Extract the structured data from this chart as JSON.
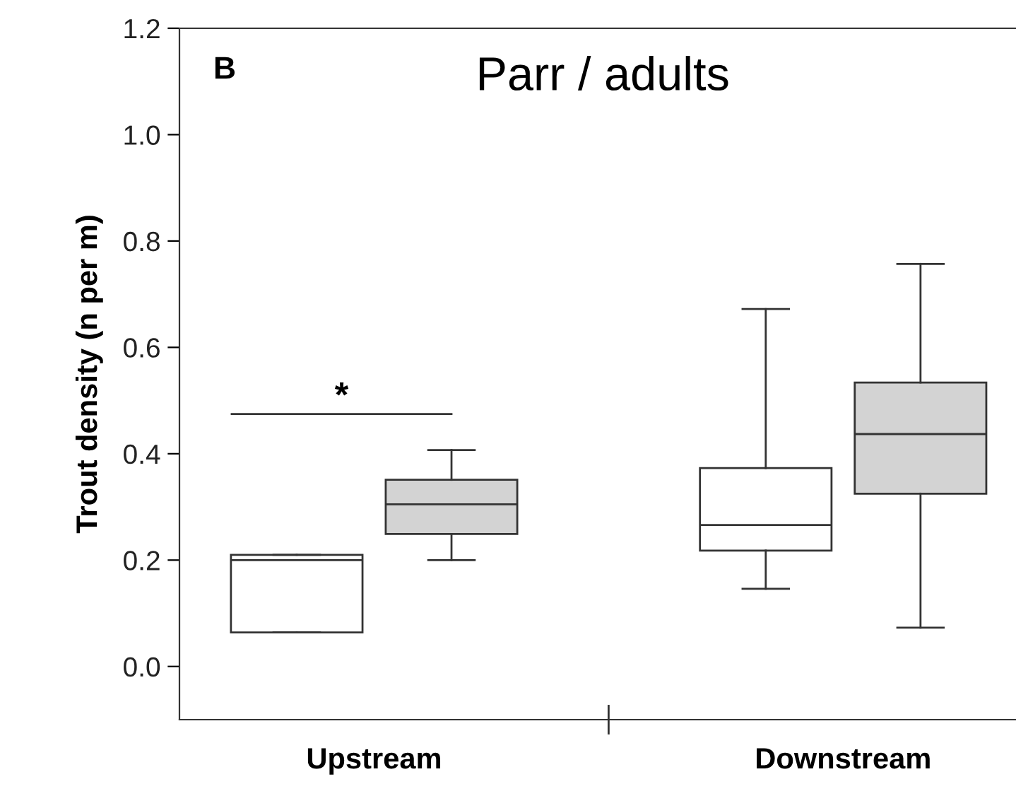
{
  "chart_data": {
    "type": "box",
    "title": "Parr / adults",
    "ylabel": "Trout density (n per m)",
    "categories": [
      "Upstream",
      "Downstream"
    ],
    "series": [
      {
        "color": "#ffffff",
        "boxes": [
          {
            "low": 0.064,
            "q1": 0.064,
            "median": 0.2,
            "q3": 0.21,
            "high": 0.21
          },
          {
            "low": 0.146,
            "q1": 0.218,
            "median": 0.266,
            "q3": 0.373,
            "high": 0.672
          }
        ]
      },
      {
        "color": "#d3d3d3",
        "boxes": [
          {
            "low": 0.2,
            "q1": 0.249,
            "median": 0.305,
            "q3": 0.351,
            "high": 0.407
          },
          {
            "low": 0.073,
            "q1": 0.325,
            "median": 0.437,
            "q3": 0.534,
            "high": 0.757
          }
        ]
      }
    ],
    "ylim": [
      -0.1,
      1.2
    ],
    "yticks": [
      {
        "value": 0,
        "label": "0.0"
      },
      0.2,
      0.4,
      0.6,
      0.8,
      {
        "value": 1,
        "label": "1.0"
      },
      1.2
    ],
    "annotations": [
      "B",
      "*"
    ],
    "grid": false,
    "legend": false
  }
}
